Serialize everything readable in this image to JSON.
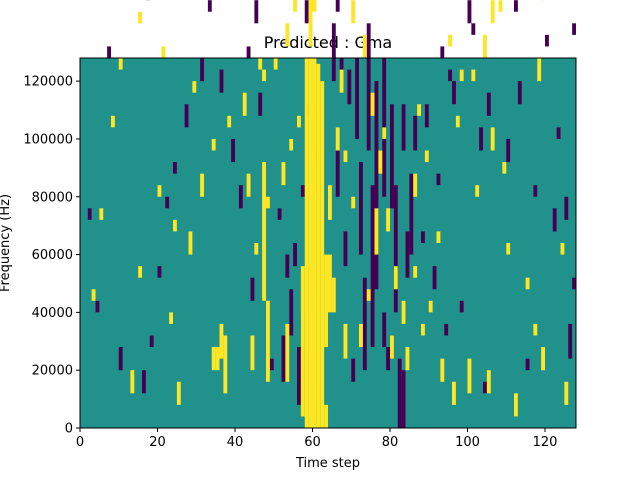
{
  "chart_data": {
    "type": "heatmap",
    "title": "Predicted : Gma",
    "xlabel": "Time step",
    "ylabel": "Frequency (Hz)",
    "xlim": [
      0,
      128
    ],
    "ylim": [
      0,
      128000
    ],
    "x_ticks": [
      0,
      20,
      40,
      60,
      80,
      100,
      120
    ],
    "y_ticks": [
      0,
      20000,
      40000,
      60000,
      80000,
      100000,
      120000
    ],
    "x_tick_labels": [
      "0",
      "20",
      "40",
      "60",
      "80",
      "100",
      "120"
    ],
    "y_tick_labels": [
      "0",
      "20000",
      "40000",
      "60000",
      "80000",
      "100000",
      "120000"
    ],
    "colormap": "viridis",
    "colors": {
      "background": "#21918c",
      "high": "#fde725",
      "low": "#440154"
    },
    "grid": false,
    "cell_size": {
      "time_steps": 1,
      "frequency_hz": 2000
    },
    "bright_cells": [
      [
        58,
        0,
        64
      ],
      [
        59,
        0,
        64
      ],
      [
        60,
        0,
        64
      ],
      [
        61,
        0,
        63
      ],
      [
        62,
        0,
        60
      ],
      [
        57,
        2,
        28
      ],
      [
        63,
        14,
        30
      ],
      [
        61,
        80,
        96
      ],
      [
        62,
        86,
        96
      ],
      [
        59,
        66,
        90
      ],
      [
        60,
        72,
        98
      ],
      [
        64,
        20,
        30
      ],
      [
        65,
        20,
        26
      ],
      [
        47,
        22,
        46
      ],
      [
        48,
        8,
        22
      ],
      [
        45,
        30,
        32
      ],
      [
        44,
        10,
        16
      ],
      [
        34,
        10,
        14
      ],
      [
        35,
        10,
        14
      ],
      [
        36,
        12,
        18
      ],
      [
        37,
        6,
        16
      ],
      [
        25,
        4,
        8
      ],
      [
        13,
        6,
        10
      ],
      [
        28,
        30,
        34
      ],
      [
        31,
        40,
        44
      ],
      [
        53,
        8,
        18
      ],
      [
        68,
        12,
        18
      ],
      [
        72,
        14,
        18
      ],
      [
        76,
        30,
        38
      ],
      [
        80,
        12,
        16
      ],
      [
        84,
        10,
        14
      ],
      [
        93,
        8,
        12
      ],
      [
        96,
        4,
        8
      ],
      [
        100,
        6,
        12
      ],
      [
        105,
        6,
        10
      ],
      [
        112,
        2,
        6
      ],
      [
        119,
        10,
        14
      ],
      [
        23,
        18,
        20
      ],
      [
        15,
        26,
        28
      ],
      [
        24,
        34,
        36
      ],
      [
        20,
        40,
        42
      ],
      [
        43,
        40,
        44
      ],
      [
        48,
        38,
        40
      ],
      [
        52,
        42,
        46
      ],
      [
        54,
        48,
        50
      ],
      [
        56,
        52,
        54
      ],
      [
        42,
        54,
        58
      ],
      [
        47,
        60,
        62
      ],
      [
        50,
        62,
        64
      ],
      [
        53,
        66,
        70
      ],
      [
        55,
        72,
        76
      ],
      [
        98,
        60,
        62
      ],
      [
        101,
        60,
        62
      ],
      [
        104,
        64,
        68
      ],
      [
        106,
        70,
        74
      ],
      [
        108,
        72,
        74
      ],
      [
        116,
        76,
        80
      ],
      [
        121,
        80,
        84
      ],
      [
        18,
        88,
        90
      ],
      [
        41,
        82,
        84
      ],
      [
        39,
        88,
        90
      ],
      [
        47,
        86,
        88
      ],
      [
        57,
        88,
        90
      ],
      [
        63,
        90,
        92
      ],
      [
        80,
        82,
        84
      ],
      [
        88,
        90,
        92
      ],
      [
        92,
        94,
        96
      ],
      [
        99,
        92,
        94
      ],
      [
        119,
        74,
        78
      ],
      [
        105,
        102,
        104
      ],
      [
        110,
        102,
        104
      ],
      [
        114,
        104,
        106
      ],
      [
        96,
        108,
        110
      ],
      [
        71,
        106,
        108
      ],
      [
        53,
        108,
        110
      ],
      [
        27,
        100,
        102
      ],
      [
        18,
        110,
        112
      ],
      [
        9,
        96,
        98
      ],
      [
        40,
        102,
        104
      ],
      [
        33,
        118,
        120
      ],
      [
        42,
        120,
        122
      ],
      [
        85,
        120,
        122
      ],
      [
        66,
        126,
        128
      ],
      [
        114,
        126,
        128
      ],
      [
        122,
        124,
        126
      ],
      [
        4,
        104,
        106
      ],
      [
        10,
        80,
        82
      ],
      [
        15,
        70,
        72
      ],
      [
        21,
        64,
        66
      ],
      [
        29,
        58,
        60
      ],
      [
        34,
        48,
        50
      ],
      [
        38,
        52,
        54
      ],
      [
        46,
        62,
        64
      ],
      [
        106,
        48,
        52
      ],
      [
        109,
        44,
        46
      ],
      [
        124,
        30,
        32
      ],
      [
        115,
        24,
        26
      ],
      [
        88,
        16,
        18
      ],
      [
        74,
        22,
        24
      ],
      [
        70,
        38,
        40
      ],
      [
        68,
        46,
        48
      ],
      [
        78,
        50,
        52
      ],
      [
        87,
        54,
        56
      ],
      [
        97,
        52,
        54
      ],
      [
        102,
        40,
        42
      ],
      [
        92,
        32,
        34
      ],
      [
        86,
        26,
        28
      ],
      [
        90,
        20,
        22
      ],
      [
        3,
        22,
        24
      ],
      [
        5,
        36,
        38
      ],
      [
        8,
        52,
        54
      ],
      [
        10,
        62,
        64
      ],
      [
        1,
        76,
        78
      ],
      [
        6,
        84,
        88
      ],
      [
        2,
        100,
        102
      ],
      [
        14,
        106,
        108
      ],
      [
        16,
        116,
        118
      ],
      [
        24,
        112,
        114
      ],
      [
        30,
        122,
        124
      ],
      [
        63,
        0,
        4
      ],
      [
        64,
        36,
        42
      ],
      [
        66,
        48,
        52
      ],
      [
        67,
        58,
        62
      ],
      [
        70,
        70,
        74
      ],
      [
        73,
        64,
        68
      ],
      [
        75,
        54,
        58
      ],
      [
        77,
        44,
        48
      ],
      [
        79,
        34,
        38
      ],
      [
        81,
        24,
        28
      ],
      [
        83,
        18,
        22
      ],
      [
        86,
        40,
        44
      ],
      [
        89,
        46,
        48
      ],
      [
        95,
        66,
        68
      ],
      [
        103,
        84,
        86
      ],
      [
        111,
        80,
        84
      ],
      [
        118,
        60,
        64
      ],
      [
        125,
        4,
        8
      ],
      [
        110,
        30,
        32
      ],
      [
        117,
        16,
        18
      ]
    ],
    "dark_cells": [
      [
        82,
        0,
        12
      ],
      [
        83,
        0,
        10
      ],
      [
        75,
        14,
        42
      ],
      [
        76,
        24,
        60
      ],
      [
        78,
        40,
        64
      ],
      [
        73,
        10,
        26
      ],
      [
        72,
        30,
        46
      ],
      [
        71,
        50,
        64
      ],
      [
        74,
        48,
        70
      ],
      [
        80,
        38,
        56
      ],
      [
        81,
        20,
        42
      ],
      [
        84,
        26,
        34
      ],
      [
        85,
        30,
        44
      ],
      [
        86,
        48,
        54
      ],
      [
        83,
        48,
        56
      ],
      [
        70,
        8,
        12
      ],
      [
        68,
        28,
        34
      ],
      [
        66,
        40,
        48
      ],
      [
        67,
        60,
        64
      ],
      [
        65,
        60,
        70
      ],
      [
        69,
        56,
        62
      ],
      [
        78,
        14,
        20
      ],
      [
        79,
        10,
        14
      ],
      [
        52,
        8,
        16
      ],
      [
        53,
        26,
        30
      ],
      [
        54,
        16,
        24
      ],
      [
        55,
        28,
        32
      ],
      [
        56,
        4,
        14
      ],
      [
        57,
        12,
        20
      ],
      [
        72,
        80,
        86
      ],
      [
        74,
        88,
        92
      ],
      [
        75,
        88,
        90
      ],
      [
        70,
        90,
        94
      ],
      [
        67,
        86,
        92
      ],
      [
        68,
        80,
        86
      ],
      [
        64,
        90,
        98
      ],
      [
        65,
        78,
        82
      ],
      [
        66,
        72,
        76
      ],
      [
        71,
        98,
        100
      ],
      [
        93,
        64,
        66
      ],
      [
        96,
        56,
        60
      ],
      [
        101,
        68,
        70
      ],
      [
        103,
        48,
        52
      ],
      [
        105,
        54,
        58
      ],
      [
        110,
        46,
        50
      ],
      [
        113,
        56,
        60
      ],
      [
        117,
        40,
        42
      ],
      [
        122,
        34,
        38
      ],
      [
        126,
        12,
        18
      ],
      [
        115,
        10,
        12
      ],
      [
        104,
        6,
        8
      ],
      [
        98,
        20,
        22
      ],
      [
        88,
        32,
        34
      ],
      [
        91,
        24,
        28
      ],
      [
        94,
        16,
        18
      ],
      [
        92,
        42,
        44
      ],
      [
        89,
        52,
        56
      ],
      [
        95,
        60,
        62
      ],
      [
        100,
        70,
        74
      ],
      [
        112,
        72,
        74
      ],
      [
        120,
        66,
        68
      ],
      [
        123,
        50,
        52
      ],
      [
        106,
        88,
        90
      ],
      [
        97,
        90,
        92
      ],
      [
        119,
        86,
        88
      ],
      [
        120,
        112,
        114
      ],
      [
        112,
        116,
        118
      ],
      [
        108,
        122,
        124
      ],
      [
        121,
        126,
        128
      ],
      [
        91,
        124,
        126
      ],
      [
        88,
        126,
        128
      ],
      [
        65,
        114,
        118
      ],
      [
        37,
        126,
        128
      ],
      [
        26,
        122,
        124
      ],
      [
        14,
        124,
        128
      ],
      [
        8,
        110,
        112
      ],
      [
        12,
        100,
        104
      ],
      [
        23,
        90,
        94
      ],
      [
        17,
        74,
        76
      ],
      [
        7,
        64,
        66
      ],
      [
        2,
        36,
        38
      ],
      [
        4,
        20,
        22
      ],
      [
        10,
        10,
        14
      ],
      [
        16,
        6,
        10
      ],
      [
        18,
        14,
        16
      ],
      [
        20,
        26,
        28
      ],
      [
        22,
        38,
        40
      ],
      [
        24,
        44,
        46
      ],
      [
        27,
        52,
        56
      ],
      [
        31,
        60,
        64
      ],
      [
        33,
        72,
        74
      ],
      [
        36,
        58,
        62
      ],
      [
        39,
        46,
        50
      ],
      [
        41,
        38,
        42
      ],
      [
        44,
        22,
        26
      ],
      [
        49,
        10,
        12
      ],
      [
        51,
        36,
        38
      ],
      [
        46,
        54,
        58
      ],
      [
        43,
        64,
        66
      ],
      [
        45,
        70,
        74
      ],
      [
        47,
        78,
        82
      ],
      [
        40,
        94,
        96
      ],
      [
        58,
        70,
        74
      ],
      [
        59,
        54,
        56
      ],
      [
        60,
        46,
        48
      ],
      [
        57,
        40,
        42
      ],
      [
        125,
        36,
        40
      ],
      [
        127,
        24,
        26
      ],
      [
        127,
        68,
        70
      ]
    ]
  }
}
